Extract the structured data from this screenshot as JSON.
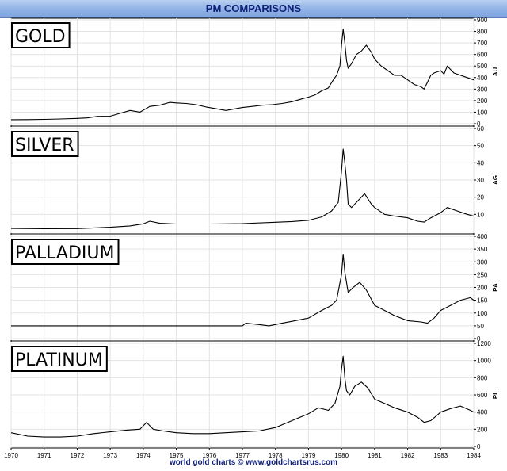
{
  "page_title": "PM COMPARISONS",
  "footer": "world gold charts © www.goldchartsrus.com",
  "colors": {
    "title_bg": "#8fb1e6",
    "title_text": "#10207a",
    "line": "#000000",
    "grid": "#e3e3e3"
  },
  "chart_data": [
    {
      "type": "line",
      "label": "GOLD",
      "ylabel": "AU",
      "ylim": [
        0,
        900
      ],
      "yticks": [
        0,
        100,
        200,
        300,
        400,
        500,
        600,
        700,
        800,
        900
      ],
      "x_range": [
        1970.0,
        1984.0
      ],
      "series": [
        {
          "x": [
            1970.0,
            1970.5,
            1971.0,
            1971.5,
            1972.0,
            1972.3,
            1972.6,
            1973.0,
            1973.3,
            1973.6,
            1973.9,
            1974.2,
            1974.5,
            1974.8,
            1975.0,
            1975.3,
            1975.6,
            1975.9,
            1976.2,
            1976.5,
            1976.8,
            1977.0,
            1977.3,
            1977.6,
            1977.9,
            1978.2,
            1978.5,
            1978.8,
            1979.0,
            1979.2,
            1979.4,
            1979.6,
            1979.75,
            1979.85,
            1979.95,
            1980.0,
            1980.05,
            1980.1,
            1980.15,
            1980.2,
            1980.3,
            1980.45,
            1980.6,
            1980.75,
            1980.9,
            1981.0,
            1981.2,
            1981.4,
            1981.6,
            1981.8,
            1982.0,
            1982.2,
            1982.4,
            1982.5,
            1982.6,
            1982.7,
            1982.8,
            1983.0,
            1983.1,
            1983.2,
            1983.4,
            1983.6,
            1983.8,
            1984.0
          ],
          "y": [
            35,
            36,
            38,
            41,
            46,
            50,
            63,
            65,
            90,
            115,
            100,
            150,
            160,
            185,
            180,
            175,
            165,
            145,
            130,
            115,
            130,
            140,
            150,
            160,
            165,
            175,
            190,
            215,
            230,
            250,
            285,
            310,
            380,
            420,
            500,
            680,
            820,
            700,
            550,
            480,
            520,
            600,
            630,
            680,
            620,
            560,
            500,
            460,
            420,
            420,
            380,
            340,
            320,
            300,
            360,
            420,
            440,
            460,
            430,
            500,
            440,
            420,
            400,
            380
          ]
        }
      ]
    },
    {
      "type": "line",
      "label": "SILVER",
      "ylabel": "AG",
      "ylim": [
        0,
        60
      ],
      "yticks": [
        10,
        20,
        30,
        40,
        50,
        60
      ],
      "x_range": [
        1970.0,
        1984.0
      ],
      "series": [
        {
          "x": [
            1970.0,
            1971.0,
            1972.0,
            1973.0,
            1973.6,
            1974.0,
            1974.2,
            1974.5,
            1975.0,
            1976.0,
            1977.0,
            1978.0,
            1978.5,
            1979.0,
            1979.4,
            1979.7,
            1979.9,
            1980.0,
            1980.05,
            1980.1,
            1980.15,
            1980.2,
            1980.3,
            1980.45,
            1980.7,
            1980.9,
            1981.0,
            1981.3,
            1981.6,
            1982.0,
            1982.3,
            1982.5,
            1982.7,
            1983.0,
            1983.2,
            1983.5,
            1983.8,
            1984.0
          ],
          "y": [
            1.8,
            1.6,
            1.7,
            2.5,
            3.3,
            4.5,
            6.0,
            4.8,
            4.4,
            4.4,
            4.6,
            5.4,
            5.8,
            6.5,
            8.5,
            12.0,
            17.0,
            35.0,
            48.0,
            40.0,
            30.0,
            16.0,
            14.0,
            17.0,
            22.0,
            16.0,
            14.0,
            10.0,
            9.0,
            8.0,
            6.0,
            5.5,
            8.0,
            11.0,
            14.0,
            12.0,
            10.0,
            9.0
          ]
        }
      ]
    },
    {
      "type": "line",
      "label": "PALLADIUM",
      "ylabel": "PA",
      "ylim": [
        0,
        400
      ],
      "yticks": [
        0,
        50,
        100,
        150,
        200,
        250,
        300,
        350,
        400
      ],
      "x_range": [
        1970.0,
        1984.0
      ],
      "series": [
        {
          "x": [
            1970.0,
            1977.0,
            1977.1,
            1977.5,
            1977.8,
            1978.2,
            1978.6,
            1979.0,
            1979.4,
            1979.7,
            1979.85,
            1980.0,
            1980.05,
            1980.1,
            1980.2,
            1980.35,
            1980.55,
            1980.75,
            1981.0,
            1981.3,
            1981.6,
            1982.0,
            1982.4,
            1982.6,
            1982.8,
            1983.0,
            1983.3,
            1983.6,
            1983.9,
            1984.0
          ],
          "y": [
            50,
            50,
            60,
            55,
            50,
            60,
            70,
            80,
            110,
            130,
            150,
            250,
            330,
            260,
            180,
            200,
            220,
            190,
            130,
            110,
            90,
            70,
            65,
            60,
            80,
            110,
            130,
            150,
            160,
            150
          ]
        }
      ]
    },
    {
      "type": "line",
      "label": "PLATINUM",
      "ylabel": "PL",
      "ylim": [
        0,
        1200
      ],
      "yticks": [
        0,
        200,
        400,
        600,
        800,
        1000,
        1200
      ],
      "x_range": [
        1970.0,
        1984.0
      ],
      "series": [
        {
          "x": [
            1970.0,
            1970.5,
            1971.0,
            1971.5,
            1972.0,
            1972.5,
            1973.0,
            1973.5,
            1973.9,
            1974.1,
            1974.3,
            1974.6,
            1975.0,
            1975.5,
            1976.0,
            1976.5,
            1977.0,
            1977.5,
            1978.0,
            1978.5,
            1979.0,
            1979.3,
            1979.6,
            1979.8,
            1979.95,
            1980.0,
            1980.05,
            1980.1,
            1980.15,
            1980.25,
            1980.4,
            1980.6,
            1980.8,
            1981.0,
            1981.3,
            1981.6,
            1982.0,
            1982.3,
            1982.5,
            1982.7,
            1983.0,
            1983.3,
            1983.6,
            1983.9,
            1984.0
          ],
          "y": [
            160,
            120,
            110,
            110,
            120,
            150,
            170,
            190,
            200,
            280,
            200,
            180,
            160,
            150,
            150,
            160,
            170,
            180,
            220,
            300,
            380,
            450,
            420,
            500,
            700,
            900,
            1050,
            800,
            650,
            600,
            700,
            750,
            680,
            550,
            500,
            450,
            400,
            340,
            280,
            300,
            400,
            440,
            470,
            420,
            400
          ]
        }
      ]
    }
  ],
  "x_axis": {
    "tick_labels": [
      "1970",
      "1971",
      "1972",
      "1973",
      "1974",
      "1975",
      "1976",
      "1977",
      "1978",
      "1979",
      "1980",
      "1981",
      "1982",
      "1983",
      "1984"
    ],
    "tick_values": [
      1970,
      1971,
      1972,
      1973,
      1974,
      1975,
      1976,
      1977,
      1978,
      1979,
      1980,
      1981,
      1982,
      1983,
      1984
    ]
  }
}
